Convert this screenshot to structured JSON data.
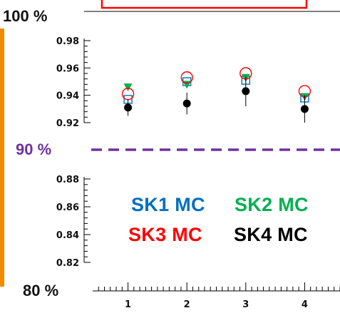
{
  "chart_data": {
    "type": "scatter",
    "percent_labels": [
      "100 %",
      "90 %",
      "80 %"
    ],
    "upper_panel": {
      "ylim": [
        0.92,
        0.98
      ],
      "ticks": [
        "0.98",
        "0.96",
        "0.94",
        "0.92"
      ]
    },
    "lower_panel": {
      "ylim": [
        0.82,
        0.88
      ],
      "ticks": [
        "0.88",
        "0.86",
        "0.84",
        "0.82"
      ]
    },
    "x_ticks": [
      "1",
      "2",
      "3",
      "4"
    ],
    "xlim": [
      0.4,
      4.6
    ],
    "series": [
      {
        "name": "SK1 MC",
        "color": "#0070c0",
        "marker": "open-square",
        "x": [
          1,
          2,
          3,
          4
        ],
        "y": [
          0.937,
          0.95,
          0.951,
          0.938
        ]
      },
      {
        "name": "SK2 MC",
        "color": "#00b050",
        "marker": "filled-triangle-down",
        "x": [
          1,
          2,
          3,
          4
        ],
        "y": [
          0.946,
          0.948,
          0.953,
          0.939
        ]
      },
      {
        "name": "SK3 MC",
        "color": "#ff0000",
        "marker": "open-circle",
        "x": [
          1,
          2,
          3,
          4
        ],
        "y": [
          0.941,
          0.953,
          0.956,
          0.943
        ]
      },
      {
        "name": "SK4 MC",
        "color": "#000000",
        "marker": "filled-circle",
        "x": [
          1,
          2,
          3,
          4
        ],
        "y": [
          0.931,
          0.934,
          0.943,
          0.93
        ],
        "err": [
          0.006,
          0.008,
          0.011,
          0.01
        ]
      }
    ]
  }
}
